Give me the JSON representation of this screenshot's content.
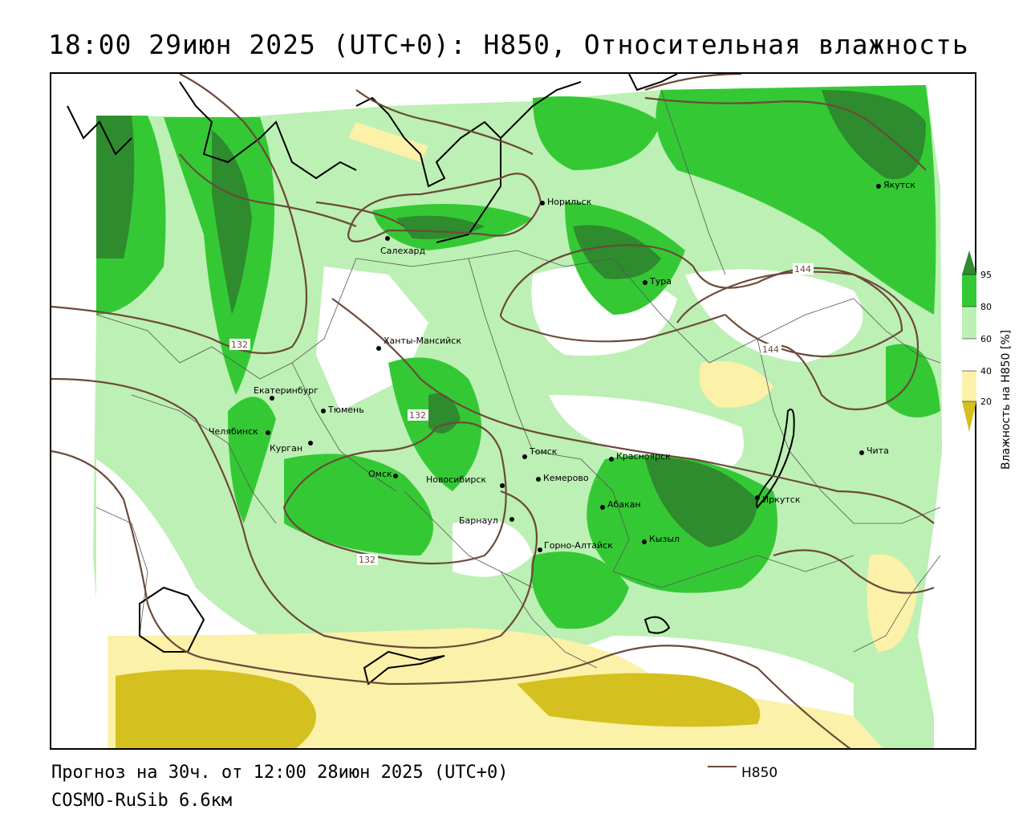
{
  "header": {
    "title": "18:00 29июн 2025 (UTC+0): H850, Относительная влажность"
  },
  "footer": {
    "forecast": "Прогноз на 30ч. от 12:00 28июн 2025 (UTC+0)",
    "model": "COSMO-RuSib 6.6км",
    "legend_label": "H850"
  },
  "colorbar": {
    "title": "Влажность на H850 [%]",
    "ticks": [
      "95",
      "80",
      "60",
      "40",
      "20"
    ],
    "colors": {
      "c95": "#2e8b2e",
      "c80": "#34c934",
      "c60": "#bdf0b4",
      "c40": "#ffffff",
      "c20": "#fbf1a8",
      "c0": "#d4c01e"
    }
  },
  "contours": {
    "labels": [
      "132",
      "132",
      "132",
      "144",
      "144"
    ],
    "color": "#6b4a3a"
  },
  "cities": [
    {
      "name": "Норильск"
    },
    {
      "name": "Салехард"
    },
    {
      "name": "Тура"
    },
    {
      "name": "Якутск"
    },
    {
      "name": "Ханты-Мансийск"
    },
    {
      "name": "Екатеринбург"
    },
    {
      "name": "Тюмень"
    },
    {
      "name": "Челябинск"
    },
    {
      "name": "Курган"
    },
    {
      "name": "Омск"
    },
    {
      "name": "Новосибирск"
    },
    {
      "name": "Томск"
    },
    {
      "name": "Кемерово"
    },
    {
      "name": "Красноярск"
    },
    {
      "name": "Барнаул"
    },
    {
      "name": "Абакан"
    },
    {
      "name": "Иркутск"
    },
    {
      "name": "Чита"
    },
    {
      "name": "Кызыл"
    },
    {
      "name": "Горно-Алтайск"
    }
  ]
}
